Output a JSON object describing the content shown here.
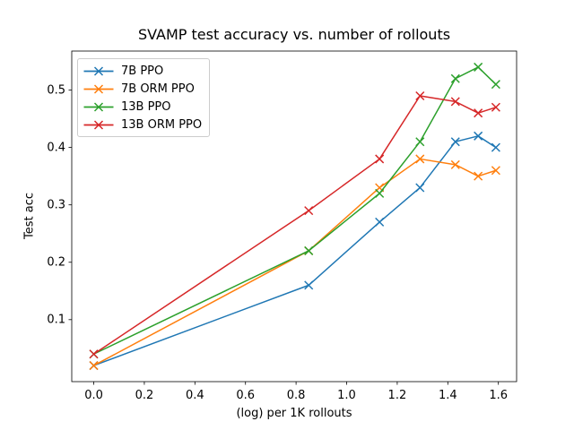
{
  "chart_data": {
    "type": "line",
    "title": "SVAMP test accuracy vs. number of rollouts",
    "xlabel": "(log) per 1K rollouts",
    "ylabel": "Test acc",
    "x": [
      0.0,
      0.85,
      1.13,
      1.29,
      1.43,
      1.52,
      1.59
    ],
    "series": [
      {
        "name": "7B PPO",
        "color": "#1f77b4",
        "values": [
          0.02,
          0.16,
          0.27,
          0.33,
          0.41,
          0.42,
          0.4
        ]
      },
      {
        "name": "7B ORM PPO",
        "color": "#ff7f0e",
        "values": [
          0.02,
          0.22,
          0.33,
          0.38,
          0.37,
          0.35,
          0.36
        ]
      },
      {
        "name": "13B PPO",
        "color": "#2ca02c",
        "values": [
          0.04,
          0.22,
          0.32,
          0.41,
          0.52,
          0.54,
          0.51
        ]
      },
      {
        "name": "13B ORM PPO",
        "color": "#d62728",
        "values": [
          0.04,
          0.29,
          0.38,
          0.49,
          0.48,
          0.46,
          0.47
        ]
      }
    ],
    "marker": "x",
    "xticks": [
      0.0,
      0.2,
      0.4,
      0.6,
      0.8,
      1.0,
      1.2,
      1.4,
      1.6
    ],
    "yticks": [
      0.1,
      0.2,
      0.3,
      0.4,
      0.5
    ],
    "xlim": [
      -0.087,
      1.672
    ],
    "ylim": [
      -0.008,
      0.568
    ],
    "grid": false,
    "legend_position": "upper left",
    "axis_color": "#000000",
    "background_color": "#ffffff"
  }
}
